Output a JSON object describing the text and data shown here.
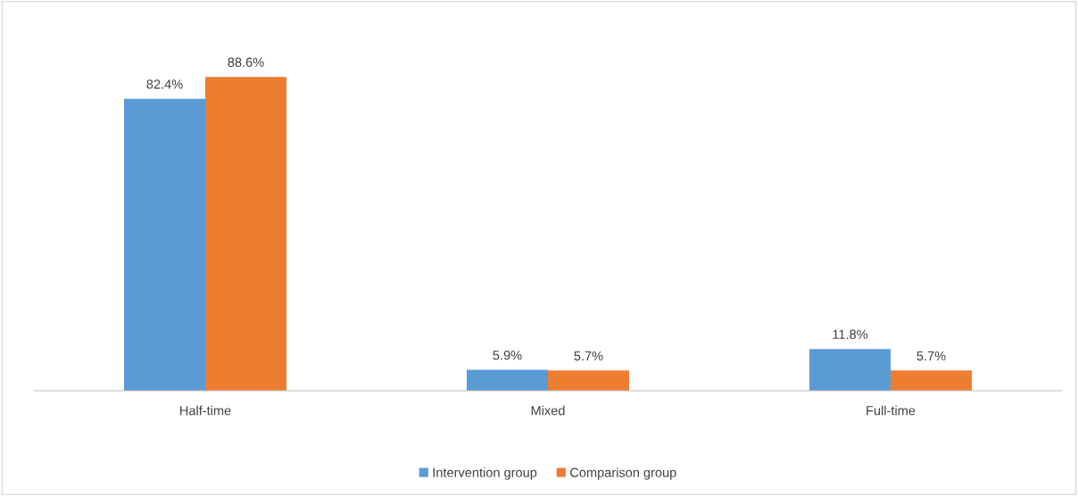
{
  "chart_data": {
    "type": "bar",
    "categories": [
      "Half-time",
      "Mixed",
      "Full-time"
    ],
    "series": [
      {
        "name": "Intervention group",
        "color": "#5b9bd5",
        "values": [
          82.4,
          5.9,
          11.8
        ],
        "value_labels": [
          "82.4%",
          "5.9%",
          "11.8%"
        ]
      },
      {
        "name": "Comparison group",
        "color": "#ed7d31",
        "values": [
          88.6,
          5.7,
          5.7
        ],
        "value_labels": [
          "88.6%",
          "5.7%",
          "5.7%"
        ]
      }
    ],
    "legend": "bottom"
  }
}
